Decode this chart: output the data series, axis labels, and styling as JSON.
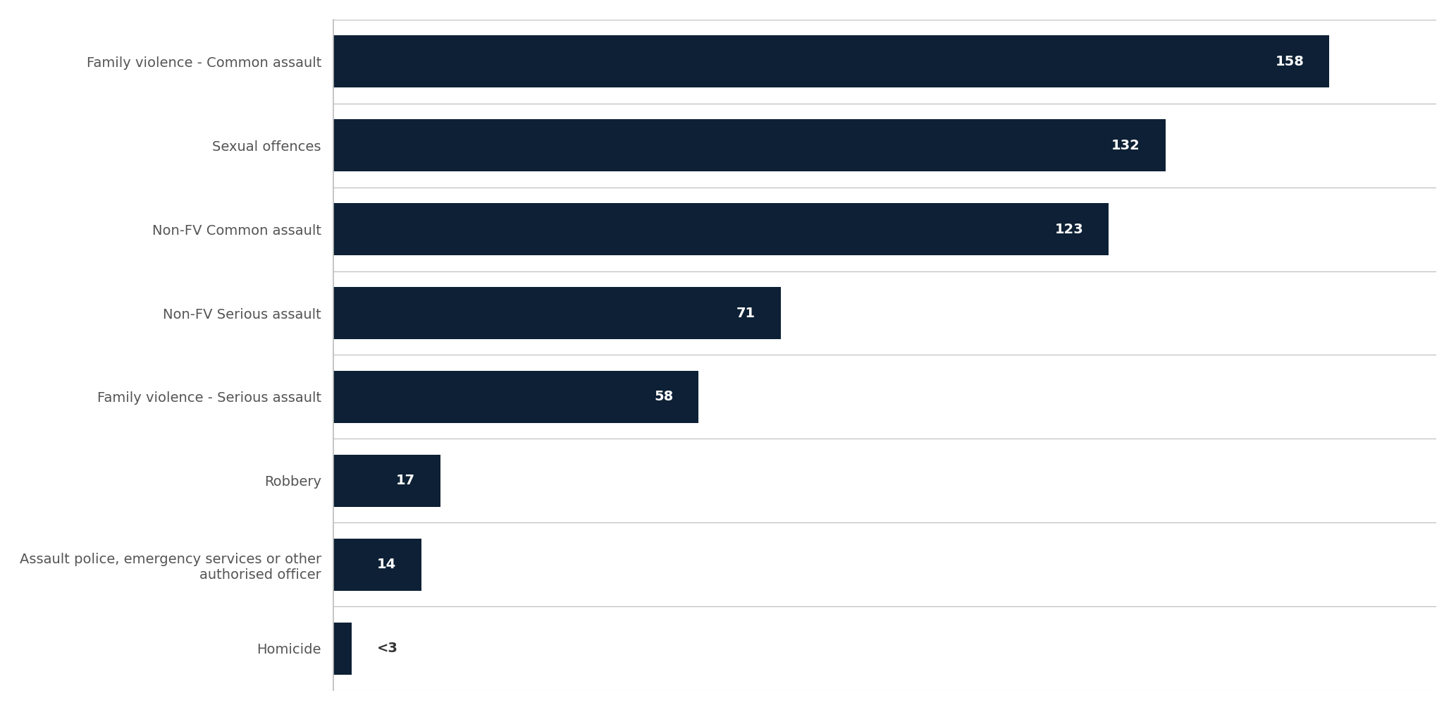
{
  "categories": [
    "Family violence - Common assault",
    "Sexual offences",
    "Non-FV Common assault",
    "Non-FV Serious assault",
    "Family violence - Serious assault",
    "Robbery",
    "Assault police, emergency services or other\nauthorised officer",
    "Homicide"
  ],
  "values": [
    158,
    132,
    123,
    71,
    58,
    17,
    14,
    3
  ],
  "bar_color": "#0d2035",
  "label_texts": [
    "158",
    "132",
    "123",
    "71",
    "58",
    "17",
    "14",
    "<3"
  ],
  "label_inside": [
    true,
    true,
    true,
    true,
    true,
    true,
    true,
    false
  ],
  "label_color_inside": "#ffffff",
  "label_color_outside": "#333333",
  "background_color": "#ffffff",
  "spine_color": "#bbbbbb",
  "category_fontsize": 14,
  "value_fontsize": 14,
  "xlim": [
    0,
    175
  ],
  "bar_height": 0.62
}
